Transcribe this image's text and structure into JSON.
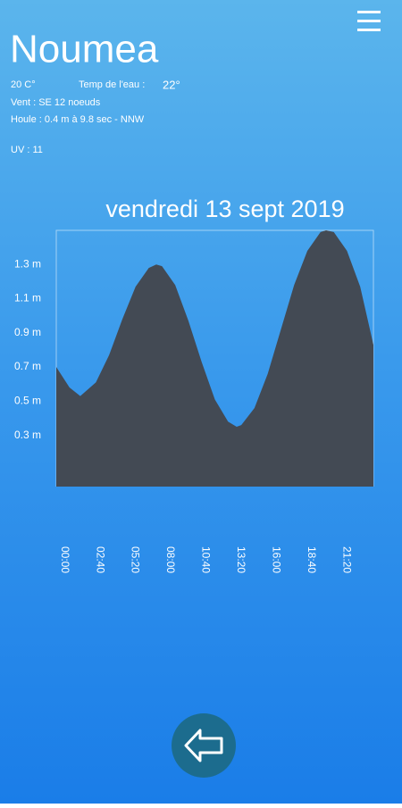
{
  "header": {
    "title": "Noumea",
    "air_temp": "20 C°",
    "water_temp_label": "Temp de l'eau :",
    "water_temp": "22°",
    "wind": "Vent : SE 12 noeuds",
    "swell": "Houle : 0.4 m à 9.8 sec - NNW",
    "uv": "UV : 11"
  },
  "chart_data": {
    "type": "area",
    "title": "vendredi 13 sept 2019",
    "color": "#434a54",
    "x": [
      0,
      60,
      109,
      180,
      240,
      300,
      360,
      420,
      454,
      480,
      540,
      600,
      660,
      720,
      780,
      819,
      840,
      900,
      960,
      1020,
      1080,
      1140,
      1200,
      1225,
      1260,
      1320,
      1380,
      1440
    ],
    "values": [
      0.7,
      0.58,
      0.53,
      0.61,
      0.77,
      0.98,
      1.17,
      1.28,
      1.3,
      1.29,
      1.18,
      0.97,
      0.73,
      0.51,
      0.38,
      0.35,
      0.36,
      0.46,
      0.66,
      0.92,
      1.18,
      1.38,
      1.49,
      1.5,
      1.49,
      1.38,
      1.17,
      0.83
    ],
    "xlim": [
      0,
      1440
    ],
    "xticks": [
      {
        "value": 0,
        "label": "00:00"
      },
      {
        "value": 160,
        "label": "02:40"
      },
      {
        "value": 320,
        "label": "05:20"
      },
      {
        "value": 480,
        "label": "08:00"
      },
      {
        "value": 640,
        "label": "10:40"
      },
      {
        "value": 800,
        "label": "13:20"
      },
      {
        "value": 960,
        "label": "16:00"
      },
      {
        "value": 1120,
        "label": "18:40"
      },
      {
        "value": 1280,
        "label": "21:20"
      }
    ],
    "ylim": [
      0,
      1.5
    ],
    "yticks": [
      {
        "value": 0.3,
        "label": "0.3 m"
      },
      {
        "value": 0.5,
        "label": "0.5 m"
      },
      {
        "value": 0.7,
        "label": "0.7 m"
      },
      {
        "value": 0.9,
        "label": "0.9 m"
      },
      {
        "value": 1.1,
        "label": "1.1 m"
      },
      {
        "value": 1.3,
        "label": "1.3 m"
      }
    ]
  }
}
